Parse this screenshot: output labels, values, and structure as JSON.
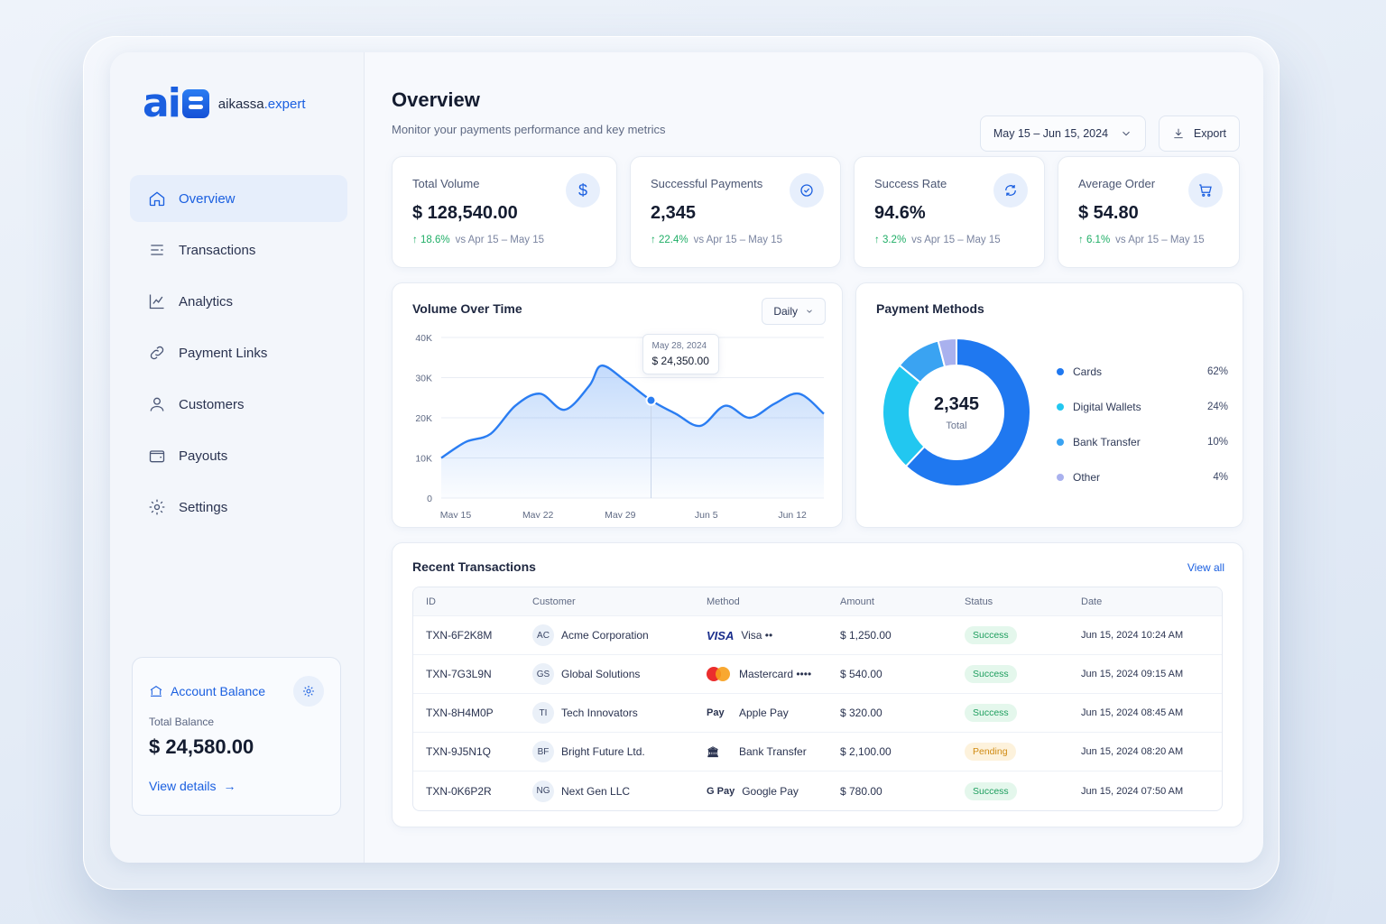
{
  "brand": {
    "name_main": "aikassa",
    "name_accent": ".expert"
  },
  "sidebar": {
    "items": [
      {
        "label": "Overview",
        "icon": "home-icon",
        "active": true
      },
      {
        "label": "Transactions",
        "icon": "list-icon"
      },
      {
        "label": "Analytics",
        "icon": "analytics-icon"
      },
      {
        "label": "Payment Links",
        "icon": "link-icon"
      },
      {
        "label": "Customers",
        "icon": "user-icon"
      },
      {
        "label": "Payouts",
        "icon": "wallet-icon"
      },
      {
        "label": "Settings",
        "icon": "gear-icon"
      }
    ],
    "balance": {
      "title": "Account Balance",
      "label": "Total Balance",
      "value": "$ 24,580.00",
      "link": "View details"
    }
  },
  "header": {
    "title": "Overview",
    "subtitle": "Monitor your payments performance and key metrics",
    "date_range": "May 15 – Jun 15, 2024",
    "export_label": "Export"
  },
  "stats": [
    {
      "title": "Total Volume",
      "value": "$ 128,540.00",
      "delta": "18.6%",
      "compare": "vs Apr 15 – May 15",
      "icon": "dollar-icon"
    },
    {
      "title": "Successful Payments",
      "value": "2,345",
      "delta": "22.4%",
      "compare": "vs Apr 15 – May 15",
      "icon": "check-circle-icon"
    },
    {
      "title": "Success Rate",
      "value": "94.6%",
      "delta": "3.2%",
      "compare": "vs Apr 15 – May 15",
      "icon": "refresh-icon"
    },
    {
      "title": "Average Order",
      "value": "$ 54.80",
      "delta": "6.1%",
      "compare": "vs Apr 15 – May 15",
      "icon": "cart-icon"
    }
  ],
  "volume_chart": {
    "title": "Volume Over Time",
    "period_label": "Daily",
    "tooltip": {
      "date": "May 28, 2024",
      "value": "$ 24,350.00"
    }
  },
  "payment_methods": {
    "title": "Payment Methods",
    "total_value": "2,345",
    "total_label": "Total"
  },
  "chart_data": [
    {
      "type": "area",
      "ylim": [
        0,
        40000
      ],
      "y_ticks": [
        "0",
        "10K",
        "20K",
        "30K",
        "40K"
      ],
      "x_ticks": [
        "May 15",
        "May 22",
        "May 29",
        "Jun 5",
        "Jun 12"
      ],
      "x": [
        0,
        2,
        4,
        6,
        8,
        10,
        12,
        13,
        15,
        17,
        19,
        21,
        23,
        25,
        27,
        29,
        31
      ],
      "values": [
        10000,
        14000,
        16000,
        23000,
        26000,
        22000,
        28000,
        33000,
        29000,
        24350,
        21000,
        18000,
        23000,
        20000,
        23500,
        26000,
        21000
      ],
      "highlight_index": 9,
      "color": "#2a7df2"
    },
    {
      "type": "pie",
      "labels": [
        "Cards",
        "Digital Wallets",
        "Bank Transfer",
        "Other"
      ],
      "percent_labels": [
        "62%",
        "24%",
        "10%",
        "4%"
      ],
      "values": [
        62,
        24,
        10,
        4
      ],
      "colors": [
        "#1f78f0",
        "#22c7f0",
        "#3aa3f2",
        "#a9b1ee"
      ]
    }
  ],
  "transactions": {
    "title": "Recent Transactions",
    "view_all": "View all",
    "columns": [
      "ID",
      "Customer",
      "Method",
      "Amount",
      "Status",
      "Date"
    ],
    "rows": [
      {
        "id": "TXN-6F2K8M",
        "initials": "AC",
        "customer": "Acme Corporation",
        "method_logo": "VISA",
        "method": "Visa ••",
        "amount": "$ 1,250.00",
        "status": "Success",
        "date": "Jun 15, 2024  10:24 AM"
      },
      {
        "id": "TXN-7G3L9N",
        "initials": "GS",
        "customer": "Global Solutions",
        "method_logo": "mastercard",
        "method": "Mastercard ••••",
        "amount": "$ 540.00",
        "status": "Success",
        "date": "Jun 15, 2024  09:15 AM"
      },
      {
        "id": "TXN-8H4M0P",
        "initials": "TI",
        "customer": "Tech Innovators",
        "method_logo": "Pay",
        "method": "Apple Pay",
        "amount": "$ 320.00",
        "status": "Success",
        "date": "Jun 15, 2024  08:45 AM"
      },
      {
        "id": "TXN-9J5N1Q",
        "initials": "BF",
        "customer": "Bright Future Ltd.",
        "method_logo": "bank",
        "method": "Bank Transfer",
        "amount": "$ 2,100.00",
        "status": "Pending",
        "date": "Jun 15, 2024  08:20 AM"
      },
      {
        "id": "TXN-0K6P2R",
        "initials": "NG",
        "customer": "Next Gen LLC",
        "method_logo": "G Pay",
        "method": "Google Pay",
        "amount": "$ 780.00",
        "status": "Success",
        "date": "Jun 15, 2024  07:50 AM"
      }
    ]
  }
}
